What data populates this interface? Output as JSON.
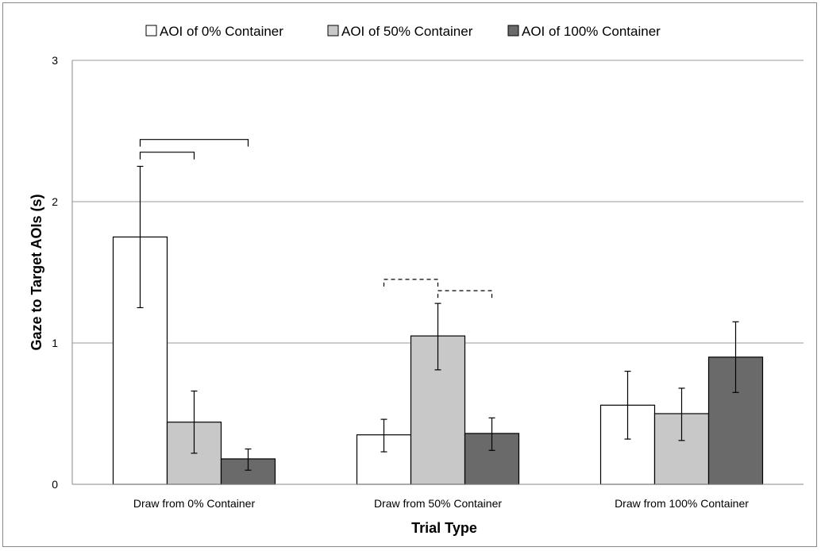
{
  "chart_data": {
    "type": "bar",
    "title": "",
    "xlabel": "Trial Type",
    "ylabel": "Gaze to Target AOIs (s)",
    "ylim": [
      0,
      3
    ],
    "yticks": [
      "0",
      "1",
      "2",
      "3"
    ],
    "grid": true,
    "legend_position": "top",
    "categories": [
      "Draw from 0% Container",
      "Draw from 50% Container",
      "Draw from 100% Container"
    ],
    "series": [
      {
        "name": "AOI of 0% Container",
        "color": "#ffffff",
        "values": [
          1.75,
          0.35,
          0.56
        ],
        "err_low": [
          1.25,
          0.23,
          0.32
        ],
        "err_high": [
          2.25,
          0.46,
          0.8
        ]
      },
      {
        "name": "AOI of 50% Container",
        "color": "#c8c8c8",
        "values": [
          0.44,
          1.05,
          0.5
        ],
        "err_low": [
          0.22,
          0.81,
          0.31
        ],
        "err_high": [
          0.66,
          1.28,
          0.68
        ]
      },
      {
        "name": "AOI of 100% Container",
        "color": "#6a6a6a",
        "values": [
          0.18,
          0.36,
          0.9
        ],
        "err_low": [
          0.1,
          0.24,
          0.65
        ],
        "err_high": [
          0.25,
          0.47,
          1.15
        ]
      }
    ],
    "significance_brackets": [
      {
        "category": 0,
        "from_series": 0,
        "to_series": 1,
        "y": 2.35,
        "style": "solid"
      },
      {
        "category": 0,
        "from_series": 0,
        "to_series": 2,
        "y": 2.44,
        "style": "solid"
      },
      {
        "category": 1,
        "from_series": 0,
        "to_series": 1,
        "y": 1.45,
        "style": "dashed"
      },
      {
        "category": 1,
        "from_series": 1,
        "to_series": 2,
        "y": 1.37,
        "style": "dashed"
      }
    ]
  }
}
